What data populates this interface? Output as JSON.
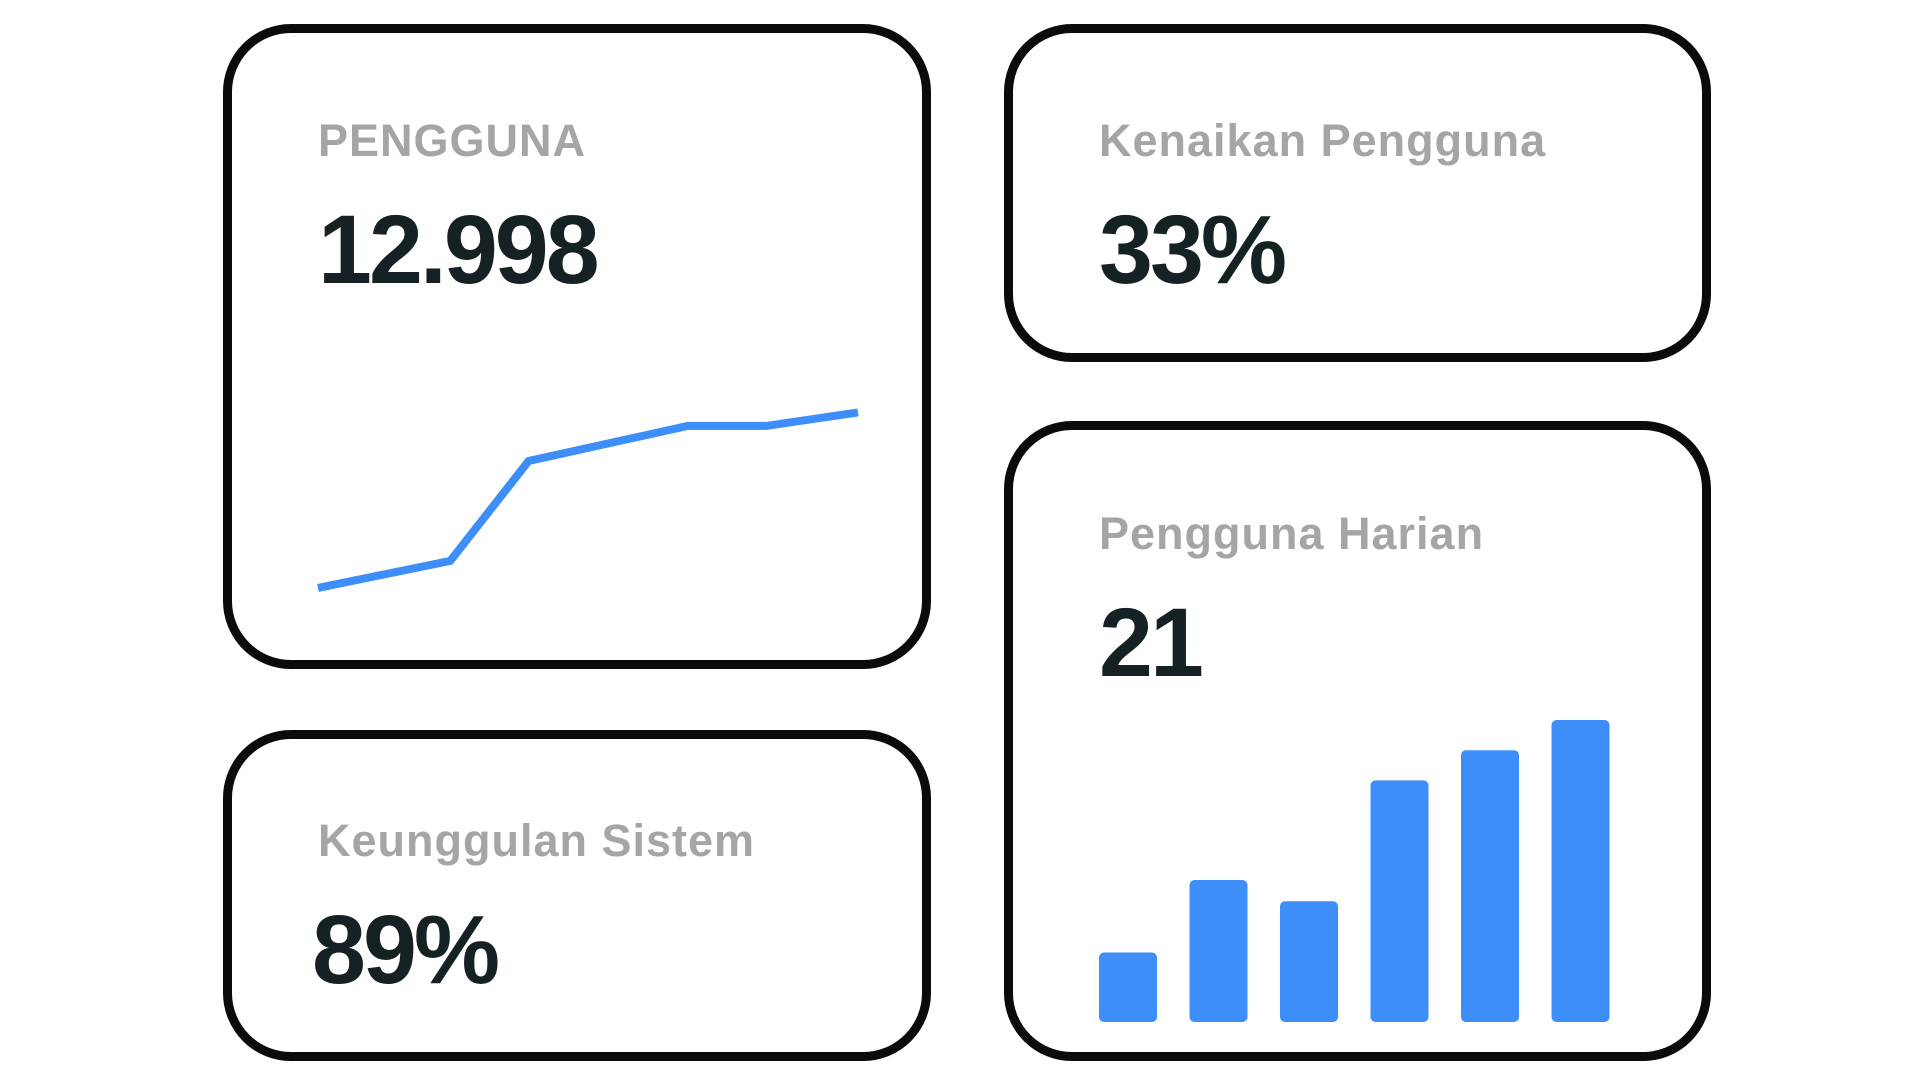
{
  "cards": {
    "users": {
      "label": "PENGGUNA",
      "value": "12.998"
    },
    "growth": {
      "label": "Kenaikan Pengguna",
      "value": "33%"
    },
    "excellence": {
      "label": "Keunggulan Sistem",
      "value": "89%"
    },
    "daily": {
      "label": "Pengguna Harian",
      "value": "21"
    }
  },
  "colors": {
    "accent": "#3d8ef8",
    "label": "#a3a5a7",
    "value": "#152123",
    "border": "#0b0b0b"
  },
  "chart_data": [
    {
      "type": "line",
      "x": [
        0,
        1,
        2,
        3,
        4,
        5
      ],
      "values": [
        1.3,
        2.3,
        6.0,
        7.3,
        7.3,
        7.8
      ],
      "ylim": [
        0,
        10
      ],
      "grid": false,
      "title": "",
      "xlabel": "",
      "ylabel": ""
    },
    {
      "type": "bar",
      "categories": [
        "",
        "",
        "",
        "",
        "",
        ""
      ],
      "values": [
        2.3,
        4.7,
        4.0,
        8.0,
        9.0,
        10.0
      ],
      "ylim": [
        0,
        10
      ],
      "grid": false,
      "title": "",
      "xlabel": "",
      "ylabel": ""
    }
  ]
}
